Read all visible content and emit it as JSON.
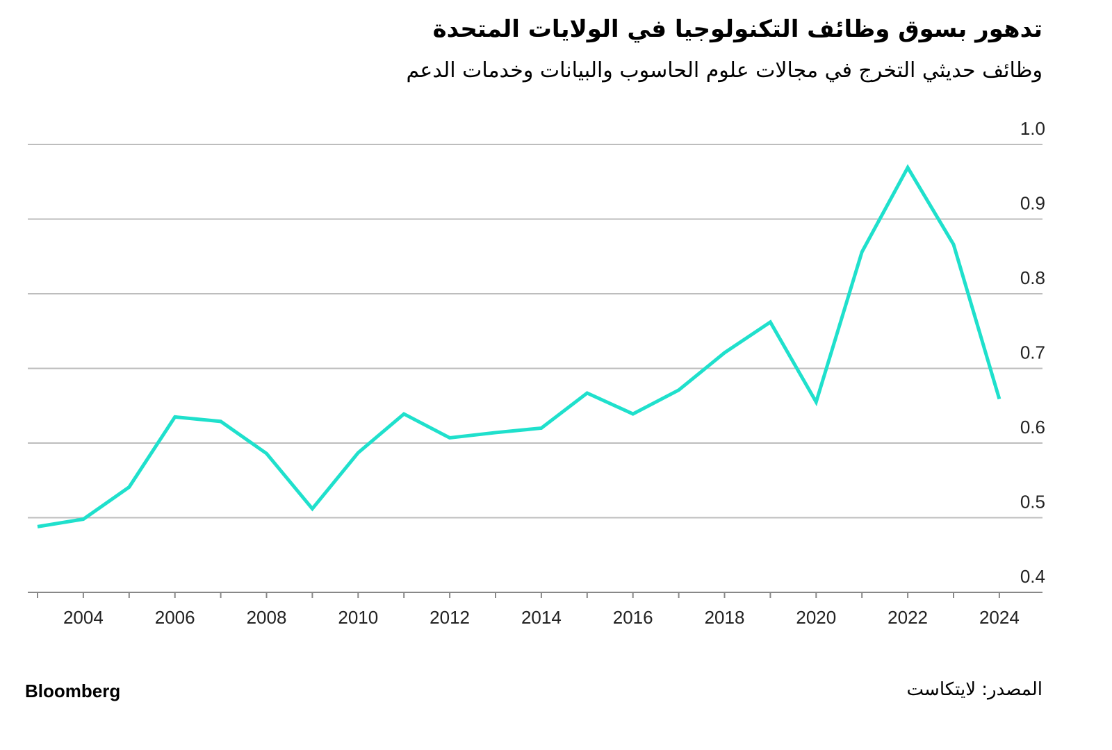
{
  "chart_data": {
    "type": "line",
    "title": "تدهور بسوق وظائف التكنولوجيا في الولايات المتحدة",
    "subtitle": "وظائف حديثي التخرج في مجالات علوم الحاسوب والبيانات وخدمات الدعم",
    "x": [
      2003,
      2004,
      2005,
      2006,
      2007,
      2008,
      2009,
      2010,
      2011,
      2012,
      2013,
      2014,
      2015,
      2016,
      2017,
      2018,
      2019,
      2020,
      2021,
      2022,
      2023,
      2024
    ],
    "series": [
      {
        "name": "وظائف حديثي التخرج",
        "color": "#1fe0cc",
        "values": [
          0.488,
          0.498,
          0.541,
          0.635,
          0.629,
          0.586,
          0.512,
          0.587,
          0.639,
          0.607,
          0.614,
          0.62,
          0.667,
          0.639,
          0.671,
          0.721,
          0.762,
          0.655,
          0.856,
          0.969,
          0.866,
          0.659
        ]
      }
    ],
    "ylim": [
      0.4,
      1.0
    ],
    "yticks": [
      "0.4",
      "0.5",
      "0.6",
      "0.7",
      "0.8",
      "0.9",
      "1.0"
    ],
    "xticks": [
      "2004",
      "2006",
      "2008",
      "2010",
      "2012",
      "2014",
      "2016",
      "2018",
      "2020",
      "2022",
      "2024"
    ],
    "xlabel": "",
    "ylabel": "",
    "grid": true,
    "y_axis_position": "right"
  },
  "footer": {
    "brand": "Bloomberg",
    "source": "المصدر: لايتكاست"
  }
}
